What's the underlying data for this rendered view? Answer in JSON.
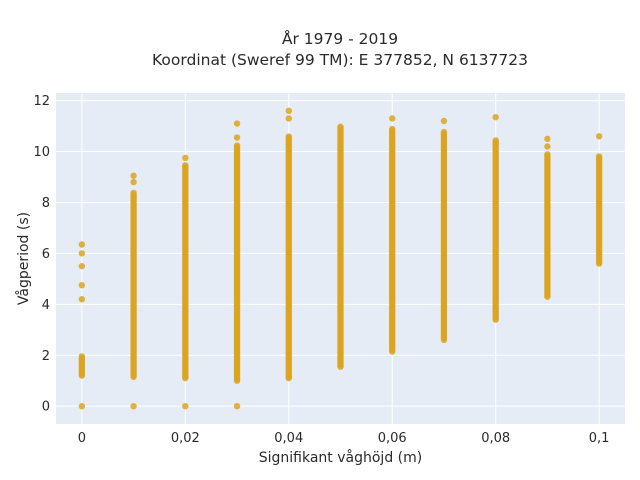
{
  "chart_data": {
    "type": "scatter",
    "title": "År 1979 - 2019",
    "subtitle": "Koordinat (Sweref 99 TM): E 377852, N 6137723",
    "xlabel": "Signifikant våghöjd (m)",
    "ylabel": "Vågperiod (s)",
    "xlim": [
      -0.005,
      0.105
    ],
    "ylim": [
      -0.7,
      12.3
    ],
    "x_ticks": [
      0,
      0.02,
      0.04,
      0.06,
      0.08,
      0.1
    ],
    "x_tick_labels": [
      "0",
      "0,02",
      "0,04",
      "0,06",
      "0,08",
      "0,1"
    ],
    "y_ticks": [
      0,
      2,
      4,
      6,
      8,
      10,
      12
    ],
    "y_tick_labels": [
      "0",
      "2",
      "4",
      "6",
      "8",
      "10",
      "12"
    ],
    "grid": true,
    "marker_color": "#DAA520",
    "series": [
      {
        "points_by_x": [
          {
            "x": 0.0,
            "segments": [
              [
                1.2,
                2.0
              ]
            ],
            "singles": [
              0,
              4.2,
              4.75,
              5.5,
              6.0,
              6.35
            ]
          },
          {
            "x": 0.01,
            "segments": [
              [
                1.15,
                8.4
              ]
            ],
            "singles": [
              0,
              8.8,
              9.05
            ]
          },
          {
            "x": 0.02,
            "segments": [
              [
                1.1,
                9.5
              ]
            ],
            "singles": [
              0,
              9.75
            ]
          },
          {
            "x": 0.03,
            "segments": [
              [
                1.0,
                10.3
              ]
            ],
            "singles": [
              0,
              10.55,
              11.1
            ]
          },
          {
            "x": 0.04,
            "segments": [
              [
                1.1,
                10.6
              ]
            ],
            "singles": [
              11.3,
              11.6
            ]
          },
          {
            "x": 0.05,
            "segments": [
              [
                1.55,
                11.0
              ]
            ],
            "singles": []
          },
          {
            "x": 0.06,
            "segments": [
              [
                2.15,
                10.9
              ]
            ],
            "singles": [
              11.3
            ]
          },
          {
            "x": 0.07,
            "segments": [
              [
                2.6,
                10.8
              ]
            ],
            "singles": [
              11.2
            ]
          },
          {
            "x": 0.08,
            "segments": [
              [
                3.4,
                10.5
              ]
            ],
            "singles": [
              11.35
            ]
          },
          {
            "x": 0.09,
            "segments": [
              [
                4.3,
                9.9
              ]
            ],
            "singles": [
              10.2,
              10.5
            ]
          },
          {
            "x": 0.1,
            "segments": [
              [
                5.6,
                9.85
              ]
            ],
            "singles": [
              10.6
            ]
          }
        ]
      }
    ]
  }
}
